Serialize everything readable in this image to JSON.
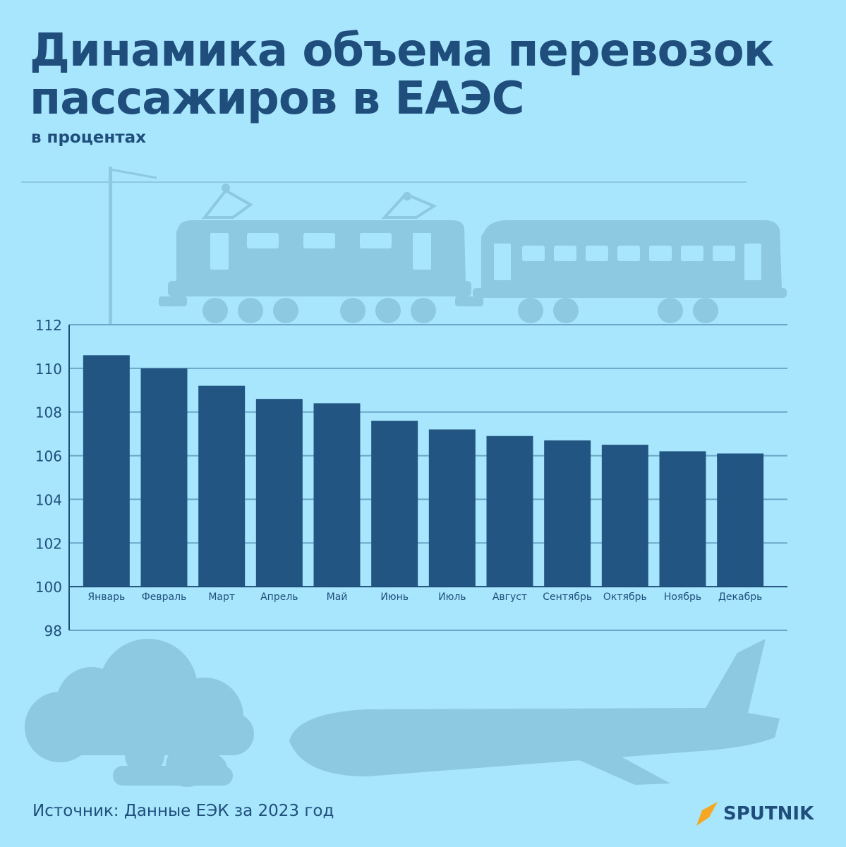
{
  "header": {
    "title": "Динамика объема перевозок пассажиров в ЕАЭС",
    "subtitle": "в процентах"
  },
  "footer": {
    "source": "Источник: Данные ЕЭК за 2023 год",
    "logo_text": "SPUTNIK"
  },
  "colors": {
    "background": "#a7e6fc",
    "bar": "#235583",
    "text": "#1f4e7c",
    "grid": "#6aa7c6",
    "silhouette": "#8dc9e0",
    "logo_accent": "#f5a623"
  },
  "chart_data": {
    "type": "bar",
    "categories": [
      "Январь",
      "Февраль",
      "Март",
      "Апрель",
      "Май",
      "Июнь",
      "Июль",
      "Август",
      "Сентябрь",
      "Октябрь",
      "Ноябрь",
      "Декабрь"
    ],
    "values": [
      110.6,
      110.0,
      109.2,
      108.6,
      108.4,
      107.6,
      107.2,
      106.9,
      106.7,
      106.5,
      106.2,
      106.1
    ],
    "baseline": 100,
    "ylim": [
      98,
      112
    ],
    "yticks": [
      98,
      100,
      102,
      104,
      106,
      108,
      110,
      112
    ],
    "grid": true,
    "title": "Динамика объема перевозок пассажиров в ЕАЭС",
    "ylabel": "в процентах"
  }
}
